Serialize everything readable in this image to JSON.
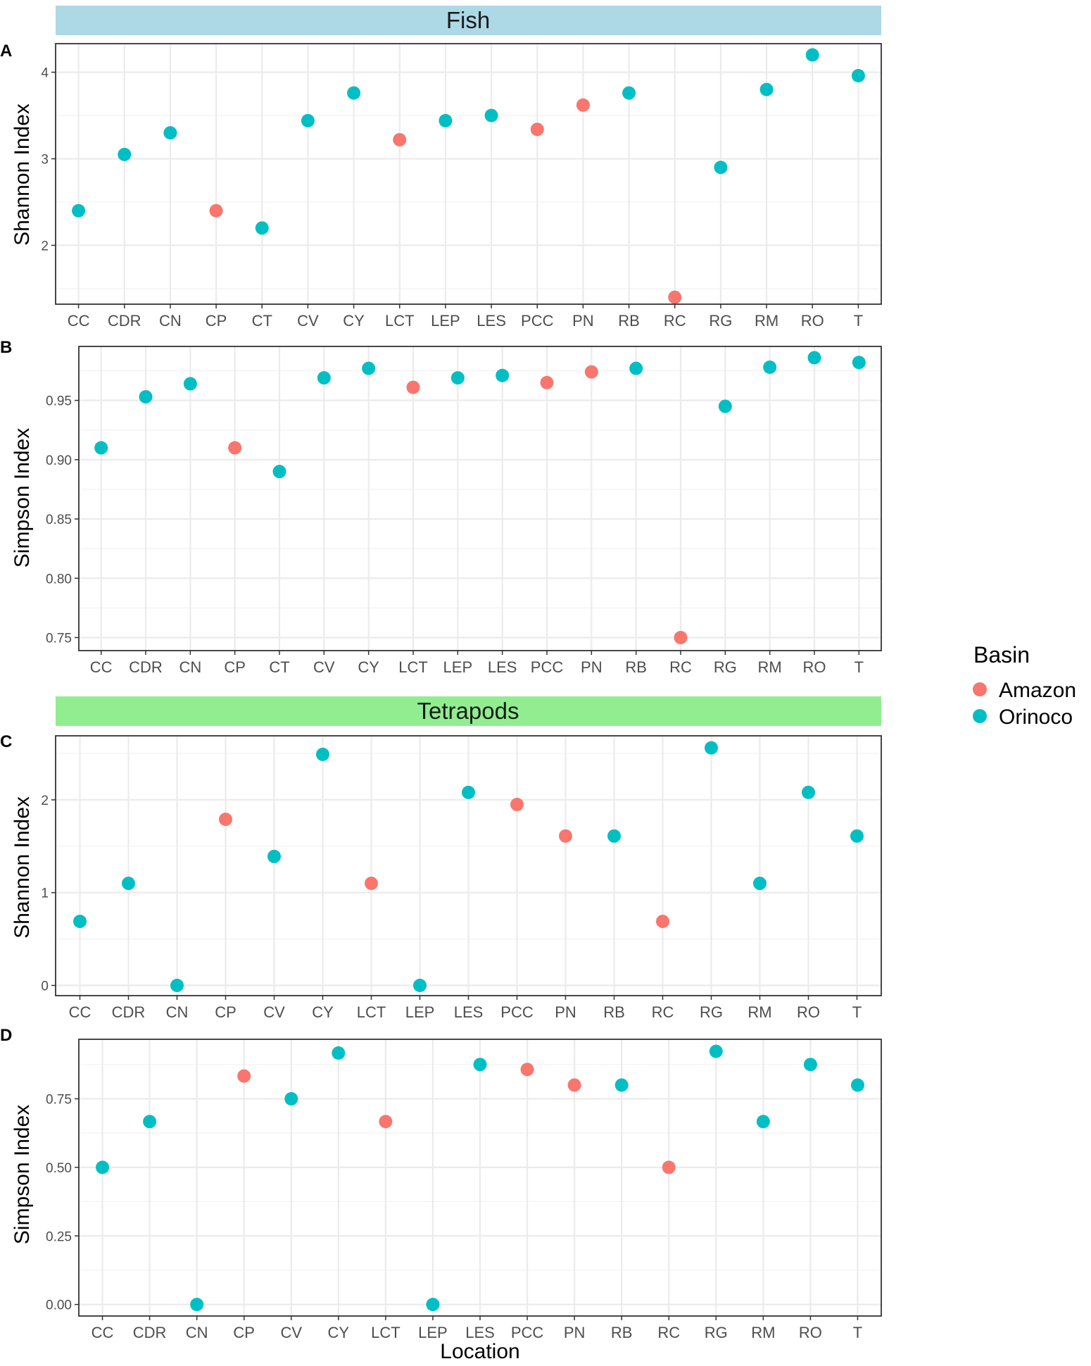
{
  "figure": {
    "x_axis_title": "Location",
    "legend": {
      "title": "Basin",
      "entries": [
        {
          "name": "Amazon",
          "color": "#F8766D"
        },
        {
          "name": "Orinoco",
          "color": "#00BFC4"
        }
      ]
    },
    "strips": [
      {
        "label": "Fish",
        "color": "#ADD8E6"
      },
      {
        "label": "Tetrapods",
        "color": "#90EE90"
      }
    ]
  },
  "chart_data": [
    {
      "type": "scatter",
      "panel": "A",
      "group": "Fish",
      "ylabel": "Shannon Index",
      "xlabel": "",
      "ylim": [
        1.32,
        4.33
      ],
      "yticks": [
        2,
        3,
        4
      ],
      "ytick_labels": [
        "2",
        "3",
        "4"
      ],
      "categories": [
        "CC",
        "CDR",
        "CN",
        "CP",
        "CT",
        "CV",
        "CY",
        "LCT",
        "LEP",
        "LES",
        "PCC",
        "PN",
        "RB",
        "RC",
        "RG",
        "RM",
        "RO",
        "T"
      ],
      "values": [
        2.4,
        3.05,
        3.3,
        2.4,
        2.2,
        3.44,
        3.76,
        3.22,
        3.44,
        3.5,
        3.34,
        3.62,
        3.76,
        1.4,
        2.9,
        3.8,
        4.2,
        3.96
      ],
      "basin": [
        "Orinoco",
        "Orinoco",
        "Orinoco",
        "Amazon",
        "Orinoco",
        "Orinoco",
        "Orinoco",
        "Amazon",
        "Orinoco",
        "Orinoco",
        "Amazon",
        "Amazon",
        "Orinoco",
        "Amazon",
        "Orinoco",
        "Orinoco",
        "Orinoco",
        "Orinoco"
      ]
    },
    {
      "type": "scatter",
      "panel": "B",
      "group": "Fish",
      "ylabel": "Simpson Index",
      "xlabel": "",
      "ylim": [
        0.739,
        0.9955
      ],
      "yticks": [
        0.75,
        0.8,
        0.85,
        0.9,
        0.95
      ],
      "ytick_labels": [
        "0.75",
        "0.80",
        "0.85",
        "0.90",
        "0.95"
      ],
      "categories": [
        "CC",
        "CDR",
        "CN",
        "CP",
        "CT",
        "CV",
        "CY",
        "LCT",
        "LEP",
        "LES",
        "PCC",
        "PN",
        "RB",
        "RC",
        "RG",
        "RM",
        "RO",
        "T"
      ],
      "values": [
        0.91,
        0.953,
        0.964,
        0.91,
        0.89,
        0.969,
        0.977,
        0.961,
        0.969,
        0.971,
        0.965,
        0.974,
        0.977,
        0.75,
        0.945,
        0.978,
        0.986,
        0.982
      ],
      "basin": [
        "Orinoco",
        "Orinoco",
        "Orinoco",
        "Amazon",
        "Orinoco",
        "Orinoco",
        "Orinoco",
        "Amazon",
        "Orinoco",
        "Orinoco",
        "Amazon",
        "Amazon",
        "Orinoco",
        "Amazon",
        "Orinoco",
        "Orinoco",
        "Orinoco",
        "Orinoco"
      ]
    },
    {
      "type": "scatter",
      "panel": "C",
      "group": "Tetrapods",
      "ylabel": "Shannon Index",
      "xlabel": "",
      "ylim": [
        -0.11,
        2.69
      ],
      "yticks": [
        0,
        1,
        2
      ],
      "ytick_labels": [
        "0",
        "1",
        "2"
      ],
      "categories": [
        "CC",
        "CDR",
        "CN",
        "CP",
        "CV",
        "CY",
        "LCT",
        "LEP",
        "LES",
        "PCC",
        "PN",
        "RB",
        "RC",
        "RG",
        "RM",
        "RO",
        "T"
      ],
      "values": [
        0.69,
        1.1,
        0.0,
        1.79,
        1.39,
        2.49,
        1.1,
        0.0,
        2.08,
        1.95,
        1.61,
        1.61,
        0.69,
        2.56,
        1.1,
        2.08,
        1.61
      ],
      "basin": [
        "Orinoco",
        "Orinoco",
        "Orinoco",
        "Amazon",
        "Orinoco",
        "Orinoco",
        "Amazon",
        "Orinoco",
        "Orinoco",
        "Amazon",
        "Amazon",
        "Orinoco",
        "Amazon",
        "Orinoco",
        "Orinoco",
        "Orinoco",
        "Orinoco"
      ]
    },
    {
      "type": "scatter",
      "panel": "D",
      "group": "Tetrapods",
      "ylabel": "Simpson Index",
      "xlabel": "Location",
      "ylim": [
        -0.042,
        0.967
      ],
      "yticks": [
        0.0,
        0.25,
        0.5,
        0.75
      ],
      "ytick_labels": [
        "0.00",
        "0.25",
        "0.50",
        "0.75"
      ],
      "categories": [
        "CC",
        "CDR",
        "CN",
        "CP",
        "CV",
        "CY",
        "LCT",
        "LEP",
        "LES",
        "PCC",
        "PN",
        "RB",
        "RC",
        "RG",
        "RM",
        "RO",
        "T"
      ],
      "values": [
        0.5,
        0.667,
        0.0,
        0.833,
        0.75,
        0.917,
        0.667,
        0.0,
        0.875,
        0.857,
        0.8,
        0.8,
        0.5,
        0.923,
        0.667,
        0.875,
        0.8
      ],
      "basin": [
        "Orinoco",
        "Orinoco",
        "Orinoco",
        "Amazon",
        "Orinoco",
        "Orinoco",
        "Amazon",
        "Orinoco",
        "Orinoco",
        "Amazon",
        "Amazon",
        "Orinoco",
        "Amazon",
        "Orinoco",
        "Orinoco",
        "Orinoco",
        "Orinoco"
      ]
    }
  ]
}
